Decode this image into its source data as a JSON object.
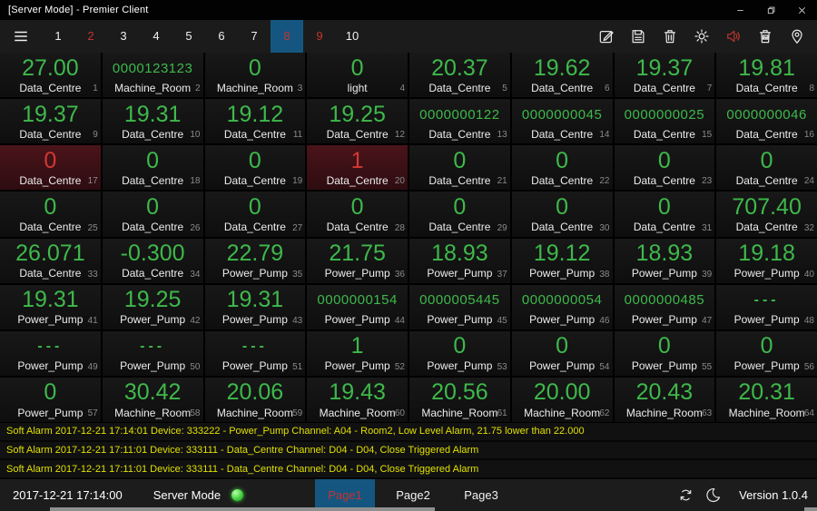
{
  "window": {
    "title": "[Server Mode] - Premier Client"
  },
  "toolbar": {
    "pages": [
      {
        "label": "1",
        "state": "normal"
      },
      {
        "label": "2",
        "state": "alert"
      },
      {
        "label": "3",
        "state": "normal"
      },
      {
        "label": "4",
        "state": "normal"
      },
      {
        "label": "5",
        "state": "normal"
      },
      {
        "label": "6",
        "state": "normal"
      },
      {
        "label": "7",
        "state": "normal"
      },
      {
        "label": "8",
        "state": "selected-alert"
      },
      {
        "label": "9",
        "state": "alert"
      },
      {
        "label": "10",
        "state": "normal"
      }
    ],
    "icons": [
      {
        "name": "edit-icon"
      },
      {
        "name": "save-icon"
      },
      {
        "name": "delete-icon"
      },
      {
        "name": "settings-icon"
      },
      {
        "name": "alarm-sound-icon",
        "color": "#b5352f"
      },
      {
        "name": "clear-picture-icon"
      },
      {
        "name": "location-pin-icon"
      }
    ]
  },
  "tiles": [
    {
      "value": "27.00",
      "label": "Data_Centre",
      "index": 1,
      "size": "lg",
      "state": "normal"
    },
    {
      "value": "0000123123",
      "label": "Machine_Room",
      "index": 2,
      "size": "sm",
      "state": "normal"
    },
    {
      "value": "0",
      "label": "Machine_Room",
      "index": 3,
      "size": "lg",
      "state": "normal"
    },
    {
      "value": "0",
      "label": "light",
      "index": 4,
      "size": "lg",
      "state": "normal"
    },
    {
      "value": "20.37",
      "label": "Data_Centre",
      "index": 5,
      "size": "lg",
      "state": "normal"
    },
    {
      "value": "19.62",
      "label": "Data_Centre",
      "index": 6,
      "size": "lg",
      "state": "normal"
    },
    {
      "value": "19.37",
      "label": "Data_Centre",
      "index": 7,
      "size": "lg",
      "state": "normal"
    },
    {
      "value": "19.81",
      "label": "Data_Centre",
      "index": 8,
      "size": "lg",
      "state": "normal"
    },
    {
      "value": "19.37",
      "label": "Data_Centre",
      "index": 9,
      "size": "lg",
      "state": "normal"
    },
    {
      "value": "19.31",
      "label": "Data_Centre",
      "index": 10,
      "size": "lg",
      "state": "normal"
    },
    {
      "value": "19.12",
      "label": "Data_Centre",
      "index": 11,
      "size": "lg",
      "state": "normal"
    },
    {
      "value": "19.25",
      "label": "Data_Centre",
      "index": 12,
      "size": "lg",
      "state": "normal"
    },
    {
      "value": "0000000122",
      "label": "Data_Centre",
      "index": 13,
      "size": "sm",
      "state": "normal"
    },
    {
      "value": "0000000045",
      "label": "Data_Centre",
      "index": 14,
      "size": "sm",
      "state": "normal"
    },
    {
      "value": "0000000025",
      "label": "Data_Centre",
      "index": 15,
      "size": "sm",
      "state": "normal"
    },
    {
      "value": "0000000046",
      "label": "Data_Centre",
      "index": 16,
      "size": "sm",
      "state": "normal"
    },
    {
      "value": "0",
      "label": "Data_Centre",
      "index": 17,
      "size": "lg",
      "state": "alarm"
    },
    {
      "value": "0",
      "label": "Data_Centre",
      "index": 18,
      "size": "lg",
      "state": "normal"
    },
    {
      "value": "0",
      "label": "Data_Centre",
      "index": 19,
      "size": "lg",
      "state": "normal"
    },
    {
      "value": "1",
      "label": "Data_Centre",
      "index": 20,
      "size": "lg",
      "state": "alarm"
    },
    {
      "value": "0",
      "label": "Data_Centre",
      "index": 21,
      "size": "lg",
      "state": "normal"
    },
    {
      "value": "0",
      "label": "Data_Centre",
      "index": 22,
      "size": "lg",
      "state": "normal"
    },
    {
      "value": "0",
      "label": "Data_Centre",
      "index": 23,
      "size": "lg",
      "state": "normal"
    },
    {
      "value": "0",
      "label": "Data_Centre",
      "index": 24,
      "size": "lg",
      "state": "normal"
    },
    {
      "value": "0",
      "label": "Data_Centre",
      "index": 25,
      "size": "lg",
      "state": "normal"
    },
    {
      "value": "0",
      "label": "Data_Centre",
      "index": 26,
      "size": "lg",
      "state": "normal"
    },
    {
      "value": "0",
      "label": "Data_Centre",
      "index": 27,
      "size": "lg",
      "state": "normal"
    },
    {
      "value": "0",
      "label": "Data_Centre",
      "index": 28,
      "size": "lg",
      "state": "normal"
    },
    {
      "value": "0",
      "label": "Data_Centre",
      "index": 29,
      "size": "lg",
      "state": "normal"
    },
    {
      "value": "0",
      "label": "Data_Centre",
      "index": 30,
      "size": "lg",
      "state": "normal"
    },
    {
      "value": "0",
      "label": "Data_Centre",
      "index": 31,
      "size": "lg",
      "state": "normal"
    },
    {
      "value": "707.40",
      "label": "Data_Centre",
      "index": 32,
      "size": "lg",
      "state": "normal"
    },
    {
      "value": "26.071",
      "label": "Data_Centre",
      "index": 33,
      "size": "lg",
      "state": "normal"
    },
    {
      "value": "-0.300",
      "label": "Data_Centre",
      "index": 34,
      "size": "lg",
      "state": "normal"
    },
    {
      "value": "22.79",
      "label": "Power_Pump",
      "index": 35,
      "size": "lg",
      "state": "normal"
    },
    {
      "value": "21.75",
      "label": "Power_Pump",
      "index": 36,
      "size": "lg",
      "state": "normal"
    },
    {
      "value": "18.93",
      "label": "Power_Pump",
      "index": 37,
      "size": "lg",
      "state": "normal"
    },
    {
      "value": "19.12",
      "label": "Power_Pump",
      "index": 38,
      "size": "lg",
      "state": "normal"
    },
    {
      "value": "18.93",
      "label": "Power_Pump",
      "index": 39,
      "size": "lg",
      "state": "normal"
    },
    {
      "value": "19.18",
      "label": "Power_Pump",
      "index": 40,
      "size": "lg",
      "state": "normal"
    },
    {
      "value": "19.31",
      "label": "Power_Pump",
      "index": 41,
      "size": "lg",
      "state": "normal"
    },
    {
      "value": "19.25",
      "label": "Power_Pump",
      "index": 42,
      "size": "lg",
      "state": "normal"
    },
    {
      "value": "19.31",
      "label": "Power_Pump",
      "index": 43,
      "size": "lg",
      "state": "normal"
    },
    {
      "value": "0000000154",
      "label": "Power_Pump",
      "index": 44,
      "size": "sm",
      "state": "normal"
    },
    {
      "value": "0000005445",
      "label": "Power_Pump",
      "index": 45,
      "size": "sm",
      "state": "normal"
    },
    {
      "value": "0000000054",
      "label": "Power_Pump",
      "index": 46,
      "size": "sm",
      "state": "normal"
    },
    {
      "value": "0000000485",
      "label": "Power_Pump",
      "index": 47,
      "size": "sm",
      "state": "normal"
    },
    {
      "value": "---",
      "label": "Power_Pump",
      "index": 48,
      "size": "dash",
      "state": "normal"
    },
    {
      "value": "---",
      "label": "Power_Pump",
      "index": 49,
      "size": "dash",
      "state": "normal"
    },
    {
      "value": "---",
      "label": "Power_Pump",
      "index": 50,
      "size": "dash",
      "state": "normal"
    },
    {
      "value": "---",
      "label": "Power_Pump",
      "index": 51,
      "size": "dash",
      "state": "normal"
    },
    {
      "value": "1",
      "label": "Power_Pump",
      "index": 52,
      "size": "lg",
      "state": "normal"
    },
    {
      "value": "0",
      "label": "Power_Pump",
      "index": 53,
      "size": "lg",
      "state": "normal"
    },
    {
      "value": "0",
      "label": "Power_Pump",
      "index": 54,
      "size": "lg",
      "state": "normal"
    },
    {
      "value": "0",
      "label": "Power_Pump",
      "index": 55,
      "size": "lg",
      "state": "normal"
    },
    {
      "value": "0",
      "label": "Power_Pump",
      "index": 56,
      "size": "lg",
      "state": "normal"
    },
    {
      "value": "0",
      "label": "Power_Pump",
      "index": 57,
      "size": "lg",
      "state": "normal"
    },
    {
      "value": "30.42",
      "label": "Machine_Room",
      "index": 58,
      "size": "lg",
      "state": "normal"
    },
    {
      "value": "20.06",
      "label": "Machine_Room",
      "index": 59,
      "size": "lg",
      "state": "normal"
    },
    {
      "value": "19.43",
      "label": "Machine_Room",
      "index": 60,
      "size": "lg",
      "state": "normal"
    },
    {
      "value": "20.56",
      "label": "Machine_Room",
      "index": 61,
      "size": "lg",
      "state": "normal"
    },
    {
      "value": "20.00",
      "label": "Machine_Room",
      "index": 62,
      "size": "lg",
      "state": "normal"
    },
    {
      "value": "20.43",
      "label": "Machine_Room",
      "index": 63,
      "size": "lg",
      "state": "normal"
    },
    {
      "value": "20.31",
      "label": "Machine_Room",
      "index": 64,
      "size": "lg",
      "state": "normal"
    }
  ],
  "alarms": [
    "Soft Alarm 2017-12-21 17:14:01 Device: 333222 - Power_Pump Channel: A04 - Room2, Low Level Alarm, 21.75 lower than 22.000",
    "Soft Alarm 2017-12-21 17:11:01 Device: 333111 - Data_Centre Channel: D04 - D04, Close Triggered Alarm",
    "Soft Alarm 2017-12-21 17:11:01 Device: 333111 - Data_Centre Channel: D04 - D04, Close Triggered Alarm"
  ],
  "statusbar": {
    "datetime": "2017-12-21 17:14:00",
    "mode_label": "Server Mode",
    "mode_status": "online",
    "tabs": [
      {
        "label": "Page1",
        "active": true
      },
      {
        "label": "Page2",
        "active": false
      },
      {
        "label": "Page3",
        "active": false
      }
    ],
    "icons": [
      {
        "name": "sync-icon"
      },
      {
        "name": "night-mode-icon"
      }
    ],
    "version": "Version 1.0.4"
  },
  "colors": {
    "value_green": "#3eb94b",
    "value_red": "#d23832",
    "accent_blue": "#155680",
    "alarm_yellow": "#e0e000",
    "page_red": "#c23430",
    "led_green": "#43d23f"
  }
}
